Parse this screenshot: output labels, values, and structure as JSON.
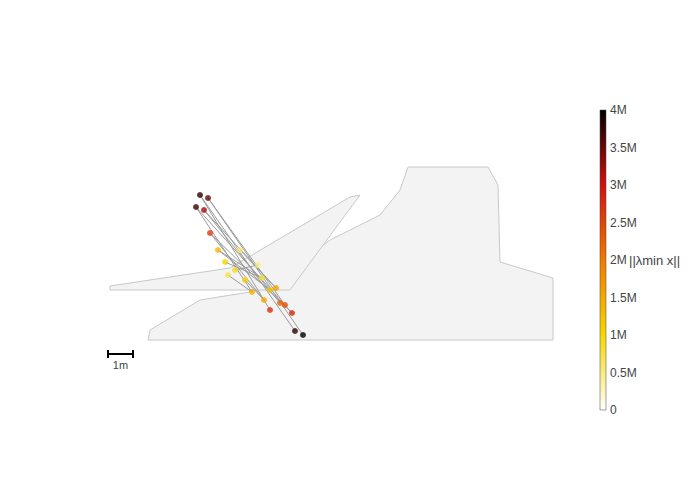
{
  "chart_data": {
    "type": "scatter",
    "tick_labels": false,
    "xlim": [
      -2,
      19
    ],
    "ylim": [
      -2,
      12
    ],
    "mesh": [
      [
        [
          1.6,
          0
        ],
        [
          17.8,
          0
        ],
        [
          17.8,
          2.48
        ],
        [
          15.68,
          3.12
        ],
        [
          15.6,
          6.2
        ],
        [
          15.2,
          6.92
        ],
        [
          12,
          6.92
        ],
        [
          11.68,
          6
        ],
        [
          10.88,
          5
        ],
        [
          8.88,
          4
        ],
        [
          7.28,
          2.8
        ],
        [
          5.68,
          1.92
        ],
        [
          3.68,
          1.6
        ],
        [
          1.68,
          0.4
        ]
      ],
      [
        [
          0.08,
          2
        ],
        [
          7.28,
          2
        ],
        [
          10.08,
          5.8
        ],
        [
          9.68,
          5.72
        ],
        [
          4.88,
          2.88
        ],
        [
          0.08,
          2.16
        ]
      ]
    ],
    "nodes": {
      "x": [
        3.68,
        4.0,
        3.52,
        3.84,
        4.08,
        4.4,
        4.68,
        5.08,
        5.48,
        5.76,
        6.16,
        6.48,
        6.72,
        6.24,
        6.88,
        7.08,
        6.48,
        7.36,
        7.48,
        7.8,
        5.28,
        4.8,
        6.0
      ],
      "y": [
        5.8,
        5.68,
        5.32,
        5.2,
        4.28,
        3.6,
        3.12,
        2.8,
        2.4,
        1.92,
        2.48,
        2.0,
        2.08,
        1.6,
        1.48,
        1.4,
        1.2,
        1.08,
        0.36,
        0.2,
        3.6,
        2.6,
        3.0
      ],
      "values": [
        3800000,
        3500000,
        3700000,
        3200000,
        2600000,
        1300000,
        1000000,
        900000,
        1100000,
        1400000,
        800000,
        1200000,
        1600000,
        1500000,
        2200000,
        2400000,
        2700000,
        2800000,
        3800000,
        4000000,
        600000,
        700000,
        500000
      ]
    },
    "edges": [
      [
        0,
        18
      ],
      [
        1,
        19
      ],
      [
        2,
        17
      ],
      [
        3,
        14
      ],
      [
        0,
        16
      ],
      [
        1,
        15
      ],
      [
        4,
        13
      ],
      [
        2,
        9
      ],
      [
        3,
        12
      ],
      [
        5,
        11
      ],
      [
        6,
        10
      ],
      [
        7,
        22
      ],
      [
        8,
        13
      ],
      [
        20,
        12
      ],
      [
        21,
        9
      ],
      [
        4,
        17
      ],
      [
        5,
        10
      ]
    ],
    "colorbar": {
      "title": "||λmin x||",
      "range": [
        0,
        4000000
      ],
      "ticks": [
        0,
        {
          "value": 500000,
          "label": "0.5M"
        },
        {
          "value": 1000000,
          "label": "1M"
        },
        {
          "value": 1500000,
          "label": "1.5M"
        },
        {
          "value": 2000000,
          "label": "2M"
        },
        {
          "value": 2500000,
          "label": "2.5M"
        },
        {
          "value": 3000000,
          "label": "3M"
        },
        {
          "value": 3500000,
          "label": "3.5M"
        },
        {
          "value": 4000000,
          "label": "4M"
        }
      ]
    },
    "scale_bar": {
      "length": 1,
      "label": "1m"
    }
  }
}
